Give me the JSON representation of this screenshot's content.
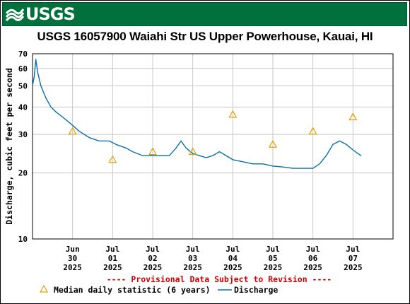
{
  "header": {
    "logo_text": "USGS",
    "brand_color": "#00703c"
  },
  "chart_data": {
    "type": "line",
    "title": "USGS 16057900 Waiahi Str US Upper Powerhouse, Kauai, HI",
    "ylabel": "Discharge, cubic feet per second",
    "xlabel": "",
    "y_scale": "log",
    "ylim": [
      10,
      70
    ],
    "yticks": [
      10,
      20,
      30,
      40,
      50,
      60,
      70
    ],
    "ytick_labels": [
      "10",
      "20",
      "30",
      "40",
      "50",
      "60",
      "70"
    ],
    "xlim": [
      "2025-06-29",
      "2025-07-08"
    ],
    "xticks": [
      {
        "date": "2025-06-30",
        "lines": [
          "Jun",
          "30",
          "2025"
        ]
      },
      {
        "date": "2025-07-01",
        "lines": [
          "Jul",
          "01",
          "2025"
        ]
      },
      {
        "date": "2025-07-02",
        "lines": [
          "Jul",
          "02",
          "2025"
        ]
      },
      {
        "date": "2025-07-03",
        "lines": [
          "Jul",
          "03",
          "2025"
        ]
      },
      {
        "date": "2025-07-04",
        "lines": [
          "Jul",
          "04",
          "2025"
        ]
      },
      {
        "date": "2025-07-05",
        "lines": [
          "Jul",
          "05",
          "2025"
        ]
      },
      {
        "date": "2025-07-06",
        "lines": [
          "Jul",
          "06",
          "2025"
        ]
      },
      {
        "date": "2025-07-07",
        "lines": [
          "Jul",
          "07",
          "2025"
        ]
      }
    ],
    "grid": true,
    "legend_placement": "bottom",
    "provisional_note": "---- Provisional Data Subject to Revision ----",
    "series": [
      {
        "name": "Discharge",
        "kind": "line",
        "color": "#0a70a8",
        "points": [
          [
            "2025-06-29 00:00",
            50
          ],
          [
            "2025-06-29 01:00",
            55
          ],
          [
            "2025-06-29 02:00",
            66
          ],
          [
            "2025-06-29 03:00",
            58
          ],
          [
            "2025-06-29 05:00",
            50
          ],
          [
            "2025-06-29 08:00",
            44
          ],
          [
            "2025-06-29 11:00",
            40
          ],
          [
            "2025-06-29 14:00",
            38
          ],
          [
            "2025-06-29 18:00",
            36
          ],
          [
            "2025-06-29 22:00",
            34
          ],
          [
            "2025-06-30 04:00",
            31
          ],
          [
            "2025-06-30 10:00",
            29
          ],
          [
            "2025-06-30 16:00",
            28
          ],
          [
            "2025-06-30 22:00",
            28
          ],
          [
            "2025-07-01 02:00",
            27
          ],
          [
            "2025-07-01 08:00",
            26
          ],
          [
            "2025-07-01 12:00",
            25
          ],
          [
            "2025-07-01 18:00",
            24
          ],
          [
            "2025-07-02 00:00",
            24
          ],
          [
            "2025-07-02 06:00",
            24
          ],
          [
            "2025-07-02 10:00",
            24
          ],
          [
            "2025-07-02 14:00",
            26
          ],
          [
            "2025-07-02 17:00",
            28
          ],
          [
            "2025-07-02 20:00",
            26
          ],
          [
            "2025-07-03 00:00",
            24.5
          ],
          [
            "2025-07-03 04:00",
            24
          ],
          [
            "2025-07-03 08:00",
            23.5
          ],
          [
            "2025-07-03 12:00",
            24
          ],
          [
            "2025-07-03 16:00",
            25
          ],
          [
            "2025-07-03 20:00",
            24
          ],
          [
            "2025-07-04 00:00",
            23
          ],
          [
            "2025-07-04 06:00",
            22.5
          ],
          [
            "2025-07-04 12:00",
            22
          ],
          [
            "2025-07-04 18:00",
            22
          ],
          [
            "2025-07-05 00:00",
            21.5
          ],
          [
            "2025-07-05 06:00",
            21.3
          ],
          [
            "2025-07-05 12:00",
            21
          ],
          [
            "2025-07-05 18:00",
            21
          ],
          [
            "2025-07-06 00:00",
            21
          ],
          [
            "2025-07-06 04:00",
            22
          ],
          [
            "2025-07-06 08:00",
            24
          ],
          [
            "2025-07-06 12:00",
            27
          ],
          [
            "2025-07-06 16:00",
            28
          ],
          [
            "2025-07-06 20:00",
            27
          ],
          [
            "2025-07-07 00:00",
            25.5
          ],
          [
            "2025-07-07 03:00",
            24.5
          ],
          [
            "2025-07-07 05:00",
            24
          ]
        ]
      },
      {
        "name": "Median daily statistic (6 years)",
        "kind": "marker",
        "marker": "triangle",
        "color": "#e0a000",
        "points": [
          [
            "2025-06-30 00:00",
            31
          ],
          [
            "2025-07-01 00:00",
            23
          ],
          [
            "2025-07-02 00:00",
            25
          ],
          [
            "2025-07-03 00:00",
            25
          ],
          [
            "2025-07-04 00:00",
            37
          ],
          [
            "2025-07-05 00:00",
            27
          ],
          [
            "2025-07-06 00:00",
            31
          ],
          [
            "2025-07-07 00:00",
            36
          ]
        ]
      }
    ]
  }
}
